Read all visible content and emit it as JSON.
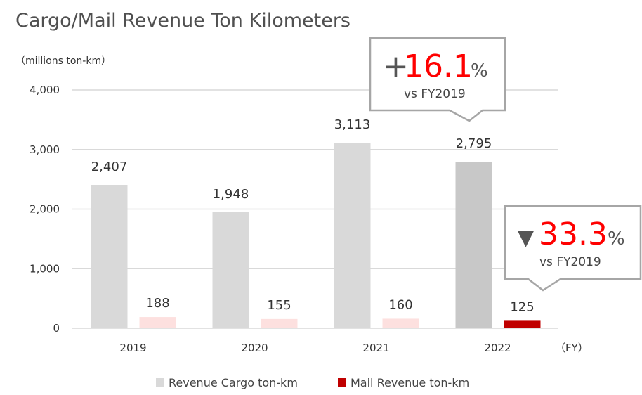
{
  "chart_data": {
    "type": "bar",
    "title": "Cargo/Mail Revenue Ton Kilometers",
    "ylabel": "（millions ton-km）",
    "xlabel": "（FY）",
    "categories": [
      "2019",
      "2020",
      "2021",
      "2022"
    ],
    "ylim": [
      0,
      4000
    ],
    "yticks": [
      0,
      1000,
      2000,
      3000,
      4000
    ],
    "ytick_labels": [
      "0",
      "1,000",
      "2,000",
      "3,000",
      "4,000"
    ],
    "grid": true,
    "legend_position": "bottom",
    "series": [
      {
        "name": "Revenue Cargo ton-km",
        "values": [
          2407,
          1948,
          3113,
          2795
        ],
        "labels": [
          "2,407",
          "1,948",
          "3,113",
          "2,795"
        ],
        "color": "#d9d9d9",
        "highlight_color": "#c8c8c8"
      },
      {
        "name": "Mail Revenue ton-km",
        "values": [
          188,
          155,
          160,
          125
        ],
        "labels": [
          "188",
          "155",
          "160",
          "125"
        ],
        "color": "#fde0df",
        "highlight_color": "#c00000"
      }
    ],
    "annotations": [
      {
        "sign": "+",
        "value": "16.1",
        "unit": "%",
        "note": "vs FY2019",
        "target": "Revenue Cargo ton-km 2022"
      },
      {
        "sign": "▼",
        "value": "33.3",
        "unit": "%",
        "note": "vs FY2019",
        "target": "Mail Revenue ton-km 2022"
      }
    ]
  }
}
